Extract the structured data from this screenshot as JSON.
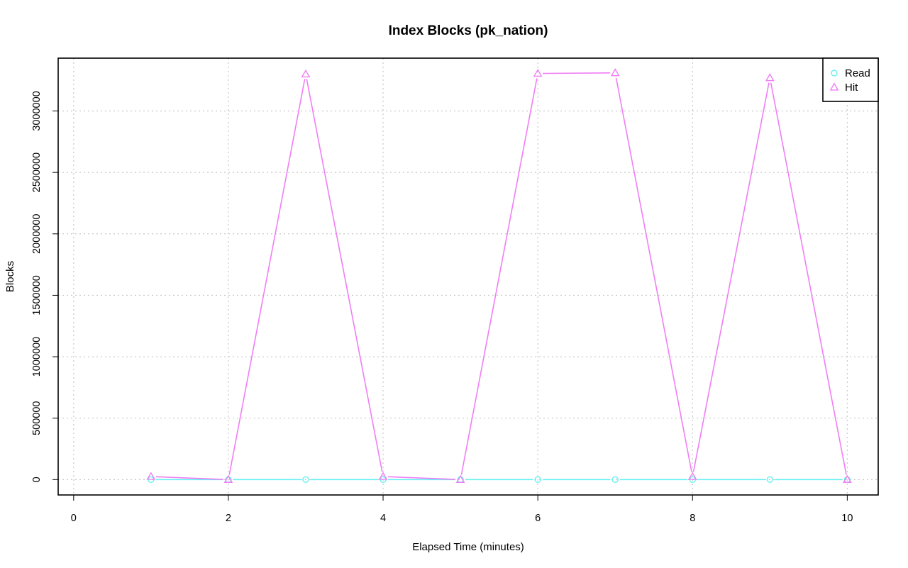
{
  "chart_data": {
    "type": "line",
    "title": "Index Blocks (pk_nation)",
    "xlabel": "Elapsed Time (minutes)",
    "ylabel": "Blocks",
    "xlim": [
      -0.2,
      10.4
    ],
    "ylim": [
      -125000,
      3430000
    ],
    "x_ticks": [
      0,
      2,
      4,
      6,
      8,
      10
    ],
    "x_tick_labels": [
      "0",
      "2",
      "4",
      "6",
      "8",
      "10"
    ],
    "y_ticks": [
      0,
      500000,
      1000000,
      1500000,
      2000000,
      2500000,
      3000000
    ],
    "y_tick_labels": [
      "0",
      "500000",
      "1000000",
      "1500000",
      "2000000",
      "2500000",
      "3000000"
    ],
    "grid": true,
    "legend_position": "top-right",
    "x": [
      1,
      2,
      3,
      4,
      5,
      6,
      7,
      8,
      9,
      10
    ],
    "series": [
      {
        "name": "Read",
        "color": "#66f0f0",
        "marker": "circle",
        "values": [
          0,
          0,
          0,
          0,
          0,
          0,
          0,
          0,
          0,
          0
        ]
      },
      {
        "name": "Hit",
        "color": "#f07ef5",
        "marker": "triangle",
        "values": [
          25000,
          0,
          3300000,
          25000,
          0,
          3305000,
          3310000,
          25000,
          3270000,
          0
        ]
      }
    ]
  }
}
